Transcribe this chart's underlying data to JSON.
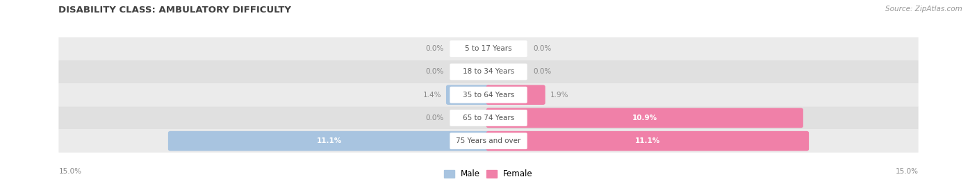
{
  "title": "DISABILITY CLASS: AMBULATORY DIFFICULTY",
  "source": "Source: ZipAtlas.com",
  "categories": [
    "5 to 17 Years",
    "18 to 34 Years",
    "35 to 64 Years",
    "65 to 74 Years",
    "75 Years and over"
  ],
  "male_values": [
    0.0,
    0.0,
    1.4,
    0.0,
    11.1
  ],
  "female_values": [
    0.0,
    0.0,
    1.9,
    10.9,
    11.1
  ],
  "x_max": 15.0,
  "male_color": "#a8c4e0",
  "female_color": "#f080a8",
  "row_bg_colors": [
    "#ebebeb",
    "#e0e0e0"
  ],
  "center_label_color": "#555555",
  "title_color": "#404040",
  "value_color_outer": "#888888",
  "value_color_inner": "#ffffff",
  "legend_male_color": "#a8c4e0",
  "legend_female_color": "#f080a8",
  "bottom_label": "15.0%"
}
